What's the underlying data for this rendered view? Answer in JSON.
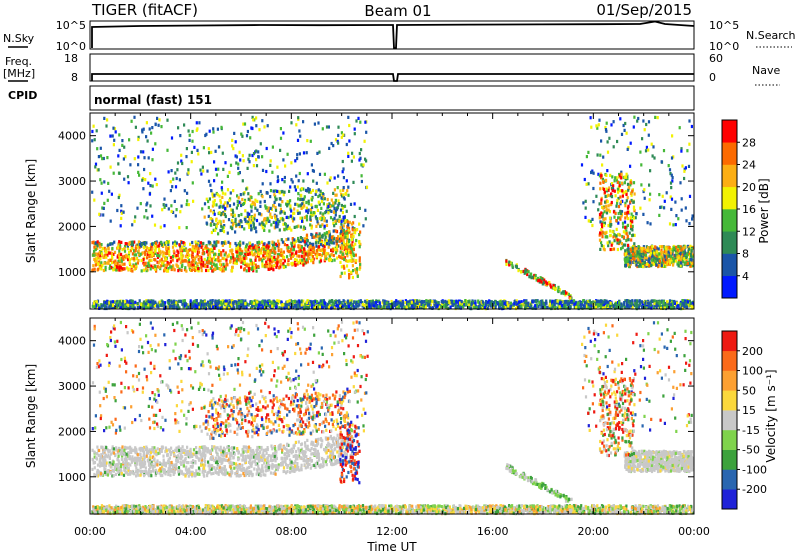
{
  "header": {
    "station": "TIGER (fitACF)",
    "beam": "Beam 01",
    "date": "01/Sep/2015"
  },
  "top_panels": {
    "nsky_label": "N.Sky",
    "nsky_ticks": [
      "10^5",
      "10^0"
    ],
    "nsearch_label": "N.Search",
    "nsearch_ticks": [
      "10^5",
      "10^0"
    ],
    "freq_label": "Freq.",
    "freq_unit": "[MHz]",
    "freq_ticks": [
      "18",
      "8"
    ],
    "nave_label": "Nave",
    "nave_ticks": [
      "60",
      "0"
    ],
    "cpid_label": "CPID",
    "cpid_value": "normal (fast) 151"
  },
  "chart_data": [
    {
      "type": "heatmap",
      "name": "power",
      "ylabel": "Slant Range [km]",
      "yticks": [
        "4000",
        "3000",
        "2000",
        "1000"
      ],
      "ytick_values": [
        4000,
        3000,
        2000,
        1000
      ],
      "ylim": [
        180,
        4500
      ],
      "xlim": [
        0,
        24
      ],
      "colorbar_label": "Power [dB]",
      "colorbar_ticks": [
        "28",
        "24",
        "20",
        "16",
        "12",
        "8",
        "4"
      ],
      "colorbar_colors": [
        "#0019ff",
        "#1a55a8",
        "#2e8a56",
        "#45b838",
        "#f2f202",
        "#fcae13",
        "#fc6a00",
        "#ff0000"
      ]
    },
    {
      "type": "heatmap",
      "name": "velocity",
      "ylabel": "Slant Range [km]",
      "yticks": [
        "4000",
        "3000",
        "2000",
        "1000"
      ],
      "ytick_values": [
        4000,
        3000,
        2000,
        1000
      ],
      "ylim": [
        180,
        4500
      ],
      "xlim": [
        0,
        24
      ],
      "colorbar_label": "Velocity [m s⁻¹]",
      "colorbar_ticks": [
        "200",
        "100",
        "50",
        "15",
        "-15",
        "-50",
        "-100",
        "-200"
      ],
      "colorbar_colors": [
        "#1f22d8",
        "#2966b0",
        "#3ca23c",
        "#7fd34c",
        "#c8c8c8",
        "#fbd83c",
        "#fca032",
        "#fb6a1a",
        "#ee1a12"
      ]
    }
  ],
  "x_axis": {
    "ticks": [
      "00:00",
      "04:00",
      "08:00",
      "12:00",
      "16:00",
      "20:00",
      "00:00"
    ],
    "tick_hours": [
      0,
      4,
      8,
      12,
      16,
      20,
      24
    ],
    "label": "Time UT"
  }
}
